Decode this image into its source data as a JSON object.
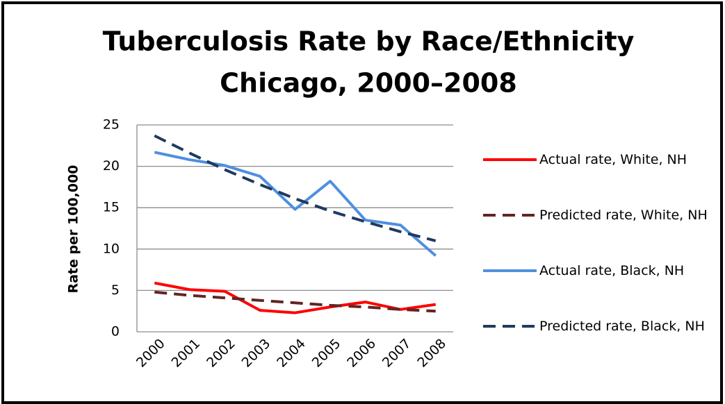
{
  "chart_data": {
    "type": "line",
    "title": "Tuberculosis Rate by Race/Ethnicity",
    "subtitle": "Chicago, 2000–2008",
    "y_label": "Rate per 100,000",
    "categories": [
      "2000",
      "2001",
      "2002",
      "2003",
      "2004",
      "2005",
      "2006",
      "2007",
      "2008"
    ],
    "series": [
      {
        "name": "Actual rate,  White, NH",
        "color": "#ff0000",
        "dashed": false,
        "values": [
          5.9,
          5.1,
          4.9,
          2.6,
          2.3,
          3.0,
          3.6,
          2.7,
          3.3
        ]
      },
      {
        "name": "Predicted rate, White, NH",
        "color": "#632523",
        "dashed": true,
        "values": [
          4.8,
          4.4,
          4.1,
          3.8,
          3.5,
          3.2,
          3.0,
          2.7,
          2.5
        ]
      },
      {
        "name": "Actual rate,  Black, NH",
        "color": "#4f8fdf",
        "dashed": false,
        "values": [
          21.7,
          20.8,
          20.1,
          18.8,
          14.8,
          18.2,
          13.5,
          12.9,
          9.2
        ]
      },
      {
        "name": "Predicted rate, Black, NH",
        "color": "#1f3a5f",
        "dashed": true,
        "values": [
          23.7,
          21.6,
          19.6,
          17.8,
          16.1,
          14.6,
          13.3,
          12.1,
          11.0
        ]
      }
    ],
    "ylim": [
      0,
      25
    ],
    "yticks": [
      0,
      5,
      10,
      15,
      20,
      25
    ],
    "grid": true,
    "legend": "right"
  }
}
